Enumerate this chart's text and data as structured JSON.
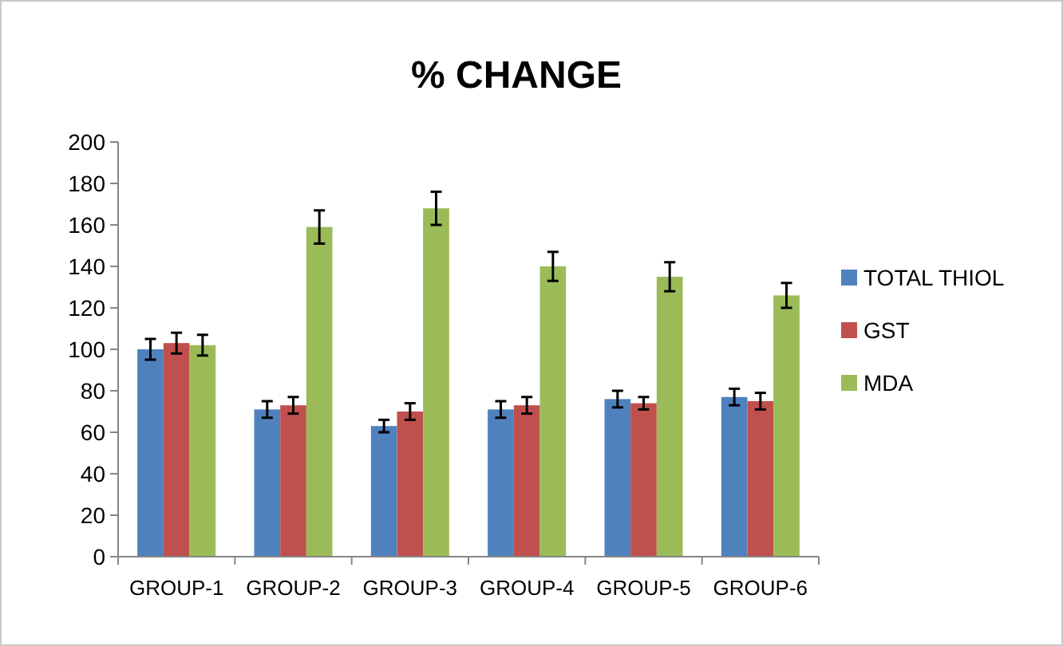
{
  "chart_data": {
    "type": "bar",
    "title": "% CHANGE",
    "categories": [
      "GROUP-1",
      "GROUP-2",
      "GROUP-3",
      "GROUP-4",
      "GROUP-5",
      "GROUP-6"
    ],
    "series": [
      {
        "name": "TOTAL THIOL",
        "color": "#4f81bd",
        "values": [
          100,
          71,
          63,
          71,
          76,
          77
        ],
        "errors": [
          5,
          4,
          3,
          4,
          4,
          4
        ]
      },
      {
        "name": "GST",
        "color": "#c0504d",
        "values": [
          103,
          73,
          70,
          73,
          74,
          75
        ],
        "errors": [
          5,
          4,
          4,
          4,
          3,
          4
        ]
      },
      {
        "name": "MDA",
        "color": "#9bbb59",
        "values": [
          102,
          159,
          168,
          140,
          135,
          126
        ],
        "errors": [
          5,
          8,
          8,
          7,
          7,
          6
        ]
      }
    ],
    "ylim": [
      0,
      200
    ],
    "yticks": [
      0,
      20,
      40,
      60,
      80,
      100,
      120,
      140,
      160,
      180,
      200
    ],
    "grid": false,
    "legend": "right"
  }
}
